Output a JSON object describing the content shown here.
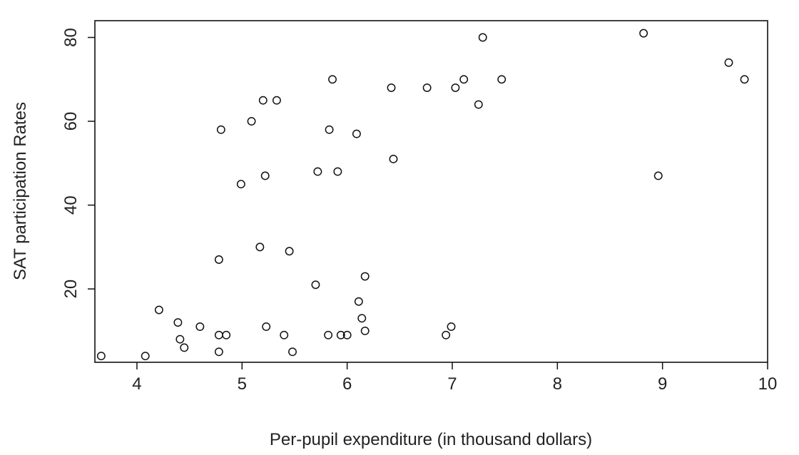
{
  "chart_data": {
    "type": "scatter",
    "title": "",
    "xlabel": "Per-pupil expenditure (in thousand dollars)",
    "ylabel": "SAT participation Rates",
    "xlim": [
      3.6,
      10.0
    ],
    "ylim": [
      2.5,
      84
    ],
    "x_ticks": [
      4,
      5,
      6,
      7,
      8,
      9,
      10
    ],
    "y_ticks": [
      20,
      40,
      60,
      80
    ],
    "grid": false,
    "legend": "none",
    "marker": "open-circle",
    "colors": {
      "marker_stroke": "#111111",
      "axis": "#111111",
      "text": "#222222",
      "background": "#ffffff"
    },
    "series": [
      {
        "points": [
          [
            3.66,
            4
          ],
          [
            4.08,
            4
          ],
          [
            4.21,
            15
          ],
          [
            4.39,
            12
          ],
          [
            4.41,
            8
          ],
          [
            4.45,
            6
          ],
          [
            4.6,
            11
          ],
          [
            4.78,
            5
          ],
          [
            4.78,
            9
          ],
          [
            4.78,
            27
          ],
          [
            4.8,
            58
          ],
          [
            4.85,
            9
          ],
          [
            4.99,
            45
          ],
          [
            5.09,
            60
          ],
          [
            5.17,
            30
          ],
          [
            5.2,
            65
          ],
          [
            5.22,
            47
          ],
          [
            5.23,
            11
          ],
          [
            5.33,
            65
          ],
          [
            5.4,
            9
          ],
          [
            5.45,
            29
          ],
          [
            5.48,
            5
          ],
          [
            5.7,
            21
          ],
          [
            5.72,
            48
          ],
          [
            5.82,
            9
          ],
          [
            5.83,
            58
          ],
          [
            5.86,
            70
          ],
          [
            5.91,
            48
          ],
          [
            5.94,
            9
          ],
          [
            6.0,
            9
          ],
          [
            6.09,
            57
          ],
          [
            6.11,
            17
          ],
          [
            6.14,
            13
          ],
          [
            6.17,
            10
          ],
          [
            6.17,
            23
          ],
          [
            6.42,
            68
          ],
          [
            6.44,
            51
          ],
          [
            6.76,
            68
          ],
          [
            6.94,
            9
          ],
          [
            6.99,
            11
          ],
          [
            7.03,
            68
          ],
          [
            7.11,
            70
          ],
          [
            7.25,
            64
          ],
          [
            7.29,
            80
          ],
          [
            7.47,
            70
          ],
          [
            8.82,
            81
          ],
          [
            8.96,
            47
          ],
          [
            9.63,
            74
          ],
          [
            9.78,
            70
          ]
        ]
      }
    ]
  }
}
